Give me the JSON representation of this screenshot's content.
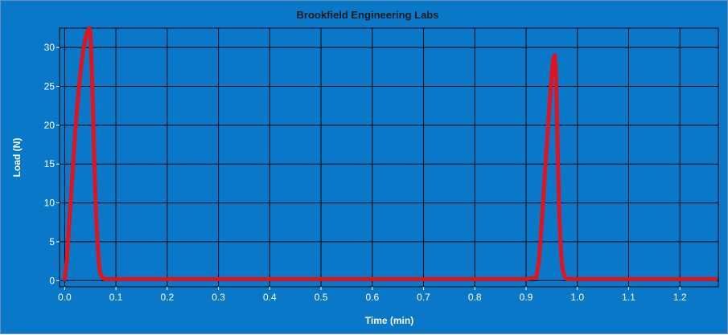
{
  "colors": {
    "background": "#0a78c8",
    "grid": "#000000",
    "series": "#e0141e",
    "axis_text": "#ffffff",
    "title_text": "#1a1a1a"
  },
  "chart_data": {
    "type": "scatter",
    "title": "Brookfield Engineering Labs",
    "xlabel": "Time (min)",
    "ylabel": "Load (N)",
    "xlim": [
      -0.01,
      1.275
    ],
    "ylim": [
      -0.8,
      32.5
    ],
    "grid": true,
    "xticks": [
      "0.0",
      "0.1",
      "0.2",
      "0.3",
      "0.4",
      "0.5",
      "0.6",
      "0.7",
      "0.8",
      "0.9",
      "1.0",
      "1.1",
      "1.2"
    ],
    "yticks": [
      "0",
      "5",
      "10",
      "15",
      "20",
      "25",
      "30"
    ],
    "series": [
      {
        "x": [
          0.0,
          0.004,
          0.008,
          0.012,
          0.016,
          0.02,
          0.024,
          0.028,
          0.032,
          0.036,
          0.04,
          0.044,
          0.048,
          0.05,
          0.052,
          0.054,
          0.056,
          0.058,
          0.06,
          0.062,
          0.064,
          0.066,
          0.068,
          0.07,
          0.075,
          0.08,
          0.1,
          0.2,
          0.3,
          0.4,
          0.5,
          0.6,
          0.7,
          0.8,
          0.9,
          0.92,
          0.925,
          0.93,
          0.935,
          0.94,
          0.945,
          0.95,
          0.953,
          0.956,
          0.958,
          0.96,
          0.962,
          0.964,
          0.967,
          0.97,
          0.975,
          0.98,
          1.0,
          1.1,
          1.2,
          1.27
        ],
        "y": [
          0.2,
          2.5,
          6.5,
          10.5,
          14.5,
          18.5,
          22.0,
          25.0,
          27.5,
          29.5,
          31.0,
          32.0,
          32.5,
          32.0,
          29.0,
          25.0,
          20.0,
          15.0,
          11.0,
          7.5,
          5.0,
          3.0,
          1.5,
          0.8,
          0.3,
          0.2,
          0.2,
          0.2,
          0.2,
          0.2,
          0.2,
          0.2,
          0.2,
          0.2,
          0.2,
          0.4,
          2.5,
          7.0,
          12.0,
          17.0,
          22.0,
          26.5,
          28.5,
          29.0,
          27.0,
          22.0,
          16.0,
          10.0,
          5.0,
          2.0,
          0.5,
          0.2,
          0.2,
          0.2,
          0.2,
          0.2
        ]
      }
    ]
  }
}
